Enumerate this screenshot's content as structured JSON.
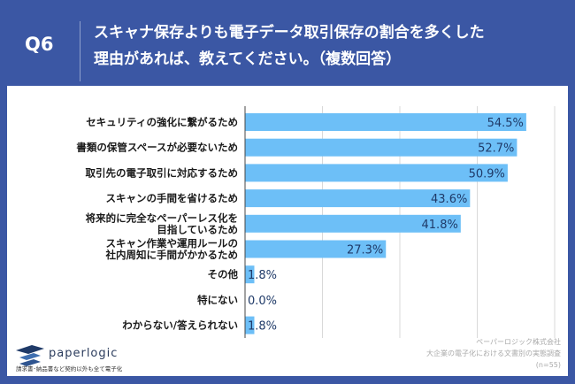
{
  "header": {
    "question_no": "Q6",
    "title_line1": "スキャナ保存よりも電子データ取引保存の割合を多くした",
    "title_line2": "理由があれば、教えてください。（複数回答）"
  },
  "chart_data": {
    "type": "bar",
    "orientation": "horizontal",
    "categories": [
      [
        "セキュリティの強化に繋がるため"
      ],
      [
        "書類の保管スペースが必要ないため"
      ],
      [
        "取引先の電子取引に対応するため"
      ],
      [
        "スキャンの手間を省けるため"
      ],
      [
        "将来的に完全なペーパーレス化を",
        "目指しているため"
      ],
      [
        "スキャン作業や運用ルールの",
        "社内周知に手間がかかるため"
      ],
      [
        "その他"
      ],
      [
        "特にない"
      ],
      [
        "わからない/答えられない"
      ]
    ],
    "values": [
      54.5,
      52.7,
      50.9,
      43.6,
      41.8,
      27.3,
      1.8,
      0.0,
      1.8
    ],
    "value_labels": [
      "54.5%",
      "52.7%",
      "50.9%",
      "43.6%",
      "41.8%",
      "27.3%",
      "1.8%",
      "0.0%",
      "1.8%"
    ],
    "xlim": [
      0,
      60
    ],
    "grid_step": 15,
    "grid": true,
    "bar_color": "#6dbff7",
    "value_color": "#1f3a68"
  },
  "footer": {
    "logo_text": "paperlogic",
    "tagline": "請求書･納品書など契約以外も全て電子化",
    "source_company": "ペーパーロジック株式会社",
    "source_survey": "大企業の電子化における文書別の実態調査",
    "sample": "(n=55)"
  }
}
